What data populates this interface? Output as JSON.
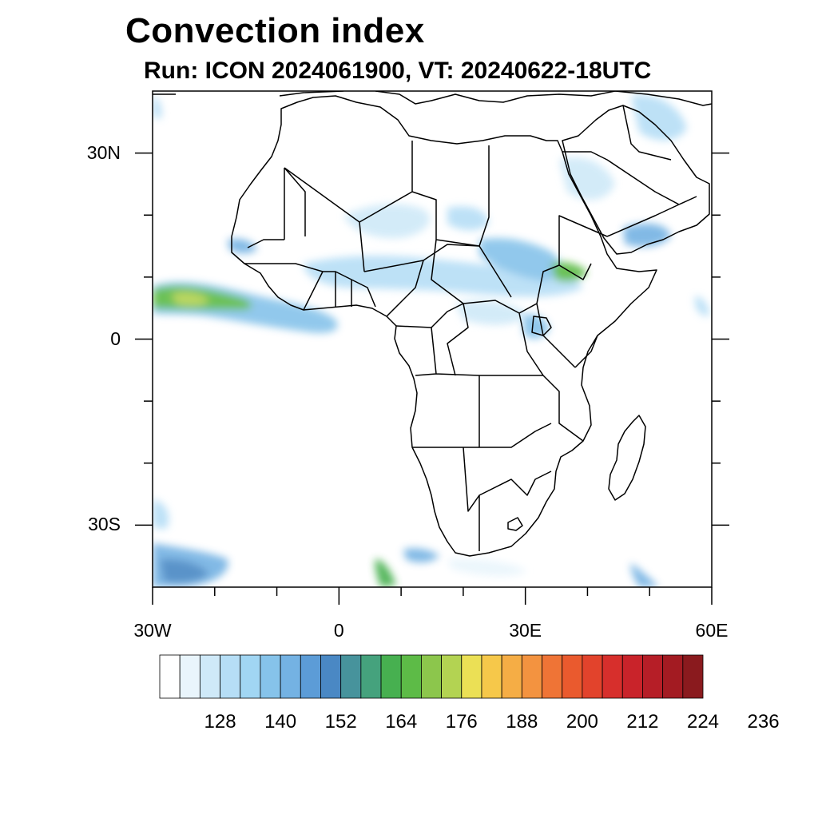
{
  "title": "Convection index",
  "subtitle": "Run: ICON 2024061900,  VT: 20240622-18UTC",
  "map": {
    "lon_range": [
      -30,
      60
    ],
    "lat_range": [
      -40,
      40
    ],
    "lat_labels": [
      {
        "lat": 30,
        "text": "30N"
      },
      {
        "lat": 0,
        "text": "0"
      },
      {
        "lat": -30,
        "text": "30S"
      }
    ],
    "lon_labels": [
      {
        "lon": -30,
        "text": "30W"
      },
      {
        "lon": 0,
        "text": "0"
      },
      {
        "lon": 30,
        "text": "30E"
      },
      {
        "lon": 60,
        "text": "60E"
      }
    ]
  },
  "colorbar": {
    "colors": [
      "#ffffff",
      "#e9f5fc",
      "#cfe9f8",
      "#b6def6",
      "#a1d6f3",
      "#86c3ea",
      "#74b2e3",
      "#5c9cd7",
      "#4a88c4",
      "#47939c",
      "#45a27d",
      "#47b050",
      "#5dbb47",
      "#8cc64c",
      "#b3d352",
      "#ebe055",
      "#f6c84a",
      "#f5ad45",
      "#f39340",
      "#ef7436",
      "#ea5a2e",
      "#e2432c",
      "#d72f2c",
      "#c9232a",
      "#b61e27",
      "#a31b22",
      "#8a1a1e"
    ],
    "labels": [
      "128",
      "140",
      "152",
      "164",
      "176",
      "188",
      "200",
      "212",
      "224",
      "236"
    ]
  },
  "legend_colors": {
    "frame": "#000000",
    "coast": "#000000"
  }
}
